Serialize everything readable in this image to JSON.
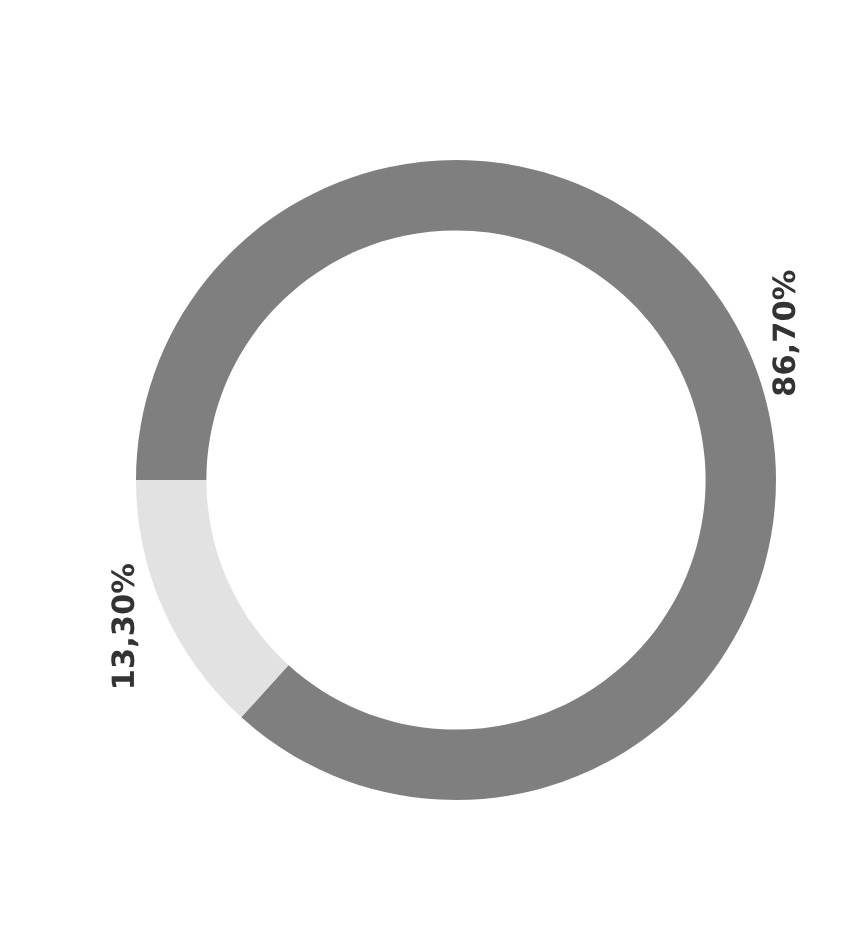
{
  "chart_data": {
    "type": "donut",
    "categories": [
      null,
      null
    ],
    "values": [
      13.3,
      86.7
    ],
    "colors": [
      "#e2e2e2",
      "#7f7f7f"
    ],
    "value_labels": [
      "13,30%",
      "86,70%"
    ]
  }
}
